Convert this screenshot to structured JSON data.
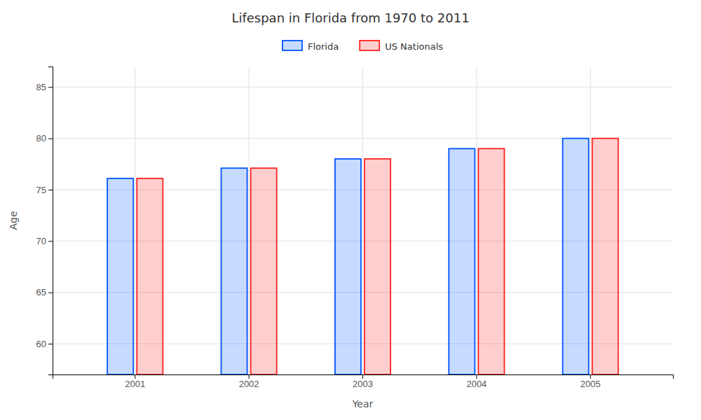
{
  "chart_data": {
    "type": "bar",
    "title": "Lifespan in Florida from 1970 to 2011",
    "x_label": "Year",
    "y_label": "Age",
    "categories": [
      "2001",
      "2002",
      "2003",
      "2004",
      "2005"
    ],
    "series": [
      {
        "name": "Florida",
        "color": "#0055ff",
        "values": [
          76.1,
          77.1,
          78.0,
          79.0,
          80.0
        ]
      },
      {
        "name": "US Nationals",
        "color": "#ff2222",
        "values": [
          76.1,
          77.1,
          78.0,
          79.0,
          80.0
        ]
      }
    ],
    "ylim": [
      57,
      87
    ],
    "yticks": [
      60,
      65,
      70,
      75,
      80,
      85
    ],
    "grid": true,
    "legend": "top"
  }
}
